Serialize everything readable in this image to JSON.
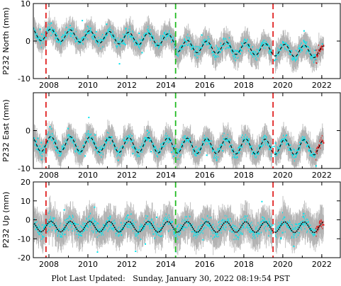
{
  "footer_text": "Plot Last Updated:   Sunday, January 30, 2022 08:19:54 PST",
  "colors": {
    "observations": "#00e5ee",
    "error_bars": "#b3b3b3",
    "model_fit": "#000000",
    "equipment_change_line": "#e02020",
    "earthquake_line": "#22bb22",
    "recent_points": "#e01010"
  },
  "chart_data": [
    {
      "type": "scatter",
      "ylabel": "P232 North (mm)",
      "xlim": [
        2007.2,
        2022.95
      ],
      "ylim": [
        -10,
        10
      ],
      "yticks": [
        -10,
        0,
        10
      ],
      "xticks": [
        "2008",
        "2010",
        "2012",
        "2014",
        "2016",
        "2018",
        "2020",
        "2022"
      ],
      "vlines": [
        {
          "x": 2007.85,
          "color": "red"
        },
        {
          "x": 2014.5,
          "color": "green"
        },
        {
          "x": 2019.5,
          "color": "red"
        }
      ],
      "series": [
        {
          "role": "daily_positions",
          "mean_start": 1.8,
          "mean_end": -1.6,
          "annual_amplitude": 1.6,
          "scatter": 1.0,
          "error_bar": 2.5
        },
        {
          "role": "model_fit",
          "mean_start": 1.8,
          "mean_end": -1.6,
          "annual_amplitude": 1.6
        }
      ],
      "offsets": [
        {
          "x": 2014.5,
          "dy": -1.5
        }
      ],
      "recent_points_after": 2021.7
    },
    {
      "type": "scatter",
      "ylabel": "P232 East (mm)",
      "xlim": [
        2007.2,
        2022.95
      ],
      "ylim": [
        -10,
        10
      ],
      "yticks": [
        -10,
        0
      ],
      "xticks": [
        "2008",
        "2010",
        "2012",
        "2014",
        "2016",
        "2018",
        "2020",
        "2022"
      ],
      "vlines": [
        {
          "x": 2007.85,
          "color": "red"
        },
        {
          "x": 2014.5,
          "color": "green"
        },
        {
          "x": 2019.5,
          "color": "red"
        }
      ],
      "series": [
        {
          "role": "daily_positions",
          "mean_start": -3.5,
          "mean_end": -4.5,
          "annual_amplitude": 2.0,
          "scatter": 1.0,
          "error_bar": 2.6
        },
        {
          "role": "model_fit",
          "mean_start": -3.5,
          "mean_end": -4.5,
          "annual_amplitude": 2.0
        }
      ],
      "offsets": [],
      "recent_points_after": 2021.7
    },
    {
      "type": "scatter",
      "ylabel": "P232 Up (mm)",
      "xlim": [
        2007.2,
        2022.95
      ],
      "ylim": [
        -20,
        20
      ],
      "yticks": [
        -20,
        -10,
        0,
        10,
        20
      ],
      "xticks": [
        "2008",
        "2010",
        "2012",
        "2014",
        "2016",
        "2018",
        "2020",
        "2022"
      ],
      "vlines": [
        {
          "x": 2007.85,
          "color": "red"
        },
        {
          "x": 2014.5,
          "color": "green"
        },
        {
          "x": 2019.5,
          "color": "red"
        }
      ],
      "series": [
        {
          "role": "daily_positions",
          "mean_start": -3.5,
          "mean_end": -4.0,
          "annual_amplitude": 2.8,
          "scatter": 2.8,
          "error_bar": 6.5
        },
        {
          "role": "model_fit",
          "mean_start": -3.5,
          "mean_end": -4.0,
          "annual_amplitude": 2.8
        }
      ],
      "offsets": [],
      "recent_points_after": 2021.7
    }
  ]
}
